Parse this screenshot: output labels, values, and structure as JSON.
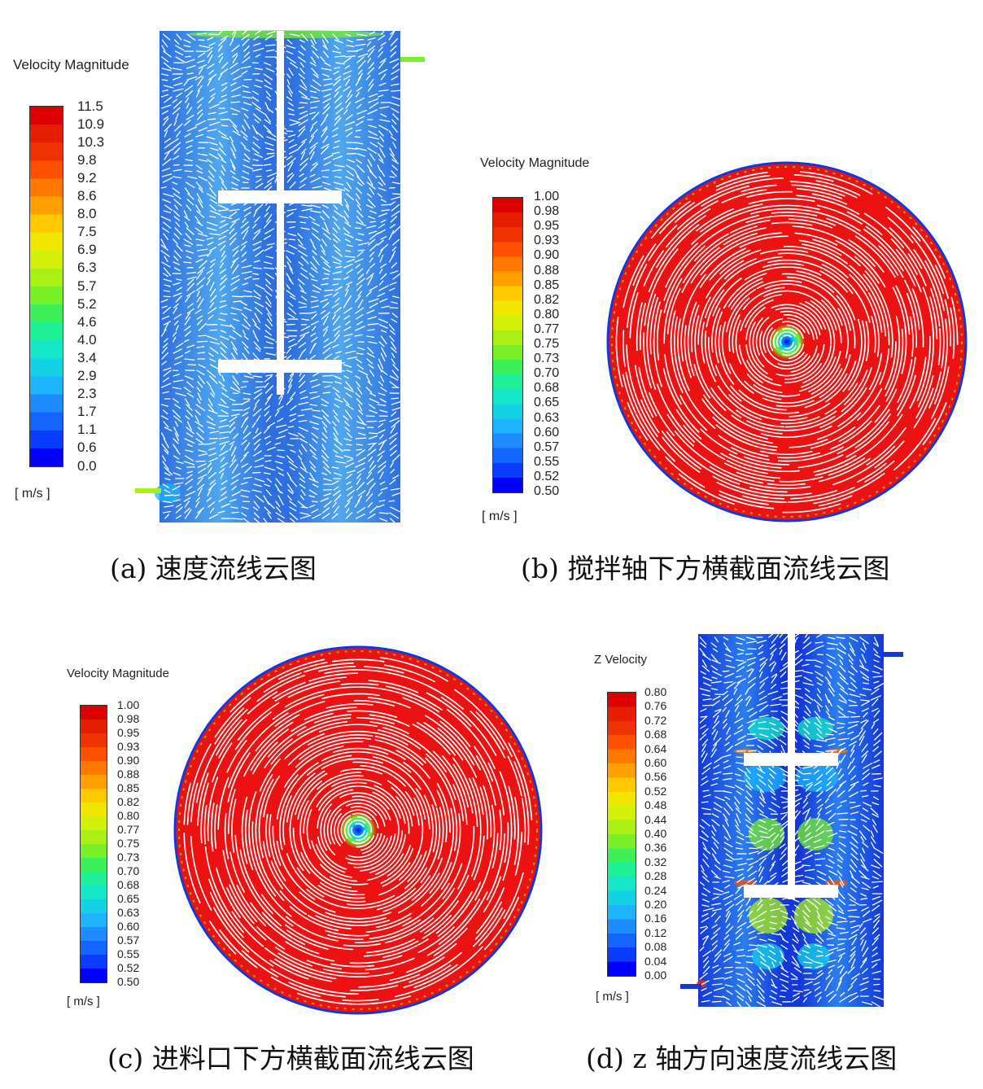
{
  "panels": {
    "a": {
      "legend_title": "Velocity Magnitude",
      "unit": "[ m/s ]",
      "ticks": [
        "11.5",
        "10.9",
        "10.3",
        "9.8",
        "9.2",
        "8.6",
        "8.0",
        "7.5",
        "6.9",
        "6.3",
        "5.7",
        "5.2",
        "4.6",
        "4.0",
        "3.4",
        "2.9",
        "2.3",
        "1.7",
        "1.1",
        "0.6",
        "0.0"
      ],
      "caption": "(a) 速度流线云图"
    },
    "b": {
      "legend_title": "Velocity Magnitude",
      "unit": "[ m/s ]",
      "ticks": [
        "1.00",
        "0.98",
        "0.95",
        "0.93",
        "0.90",
        "0.88",
        "0.85",
        "0.82",
        "0.80",
        "0.77",
        "0.75",
        "0.73",
        "0.70",
        "0.68",
        "0.65",
        "0.63",
        "0.60",
        "0.57",
        "0.55",
        "0.52",
        "0.50"
      ],
      "caption": "(b) 搅拌轴下方横截面流线云图"
    },
    "c": {
      "legend_title": "Velocity Magnitude",
      "unit": "[ m/s ]",
      "ticks": [
        "1.00",
        "0.98",
        "0.95",
        "0.93",
        "0.90",
        "0.88",
        "0.85",
        "0.82",
        "0.80",
        "0.77",
        "0.75",
        "0.73",
        "0.70",
        "0.68",
        "0.65",
        "0.63",
        "0.60",
        "0.57",
        "0.55",
        "0.52",
        "0.50"
      ],
      "caption": "(c) 进料口下方横截面流线云图"
    },
    "d": {
      "legend_title": "Z Velocity",
      "unit": "[ m/s ]",
      "ticks": [
        "0.80",
        "0.76",
        "0.72",
        "0.68",
        "0.64",
        "0.60",
        "0.56",
        "0.52",
        "0.48",
        "0.44",
        "0.40",
        "0.36",
        "0.32",
        "0.28",
        "0.24",
        "0.20",
        "0.16",
        "0.12",
        "0.08",
        "0.04",
        "0.00"
      ],
      "caption": "(d) z 轴方向速度流线云图"
    }
  },
  "colormap": [
    "#0000ff",
    "#0a3cff",
    "#1464ff",
    "#1e8cff",
    "#1eb4ff",
    "#14d2e6",
    "#14e6c8",
    "#1ef096",
    "#3cf05a",
    "#78f028",
    "#aaf014",
    "#d2f00a",
    "#f0e600",
    "#ffc800",
    "#ffa000",
    "#ff7800",
    "#ff5000",
    "#f03200",
    "#e61e00",
    "#dc0000"
  ],
  "colors": {
    "flow_red": "#ee1111",
    "flow_blue": "#2d7fe6",
    "deep_blue": "#1438d8",
    "streamline": "#ffffff"
  }
}
